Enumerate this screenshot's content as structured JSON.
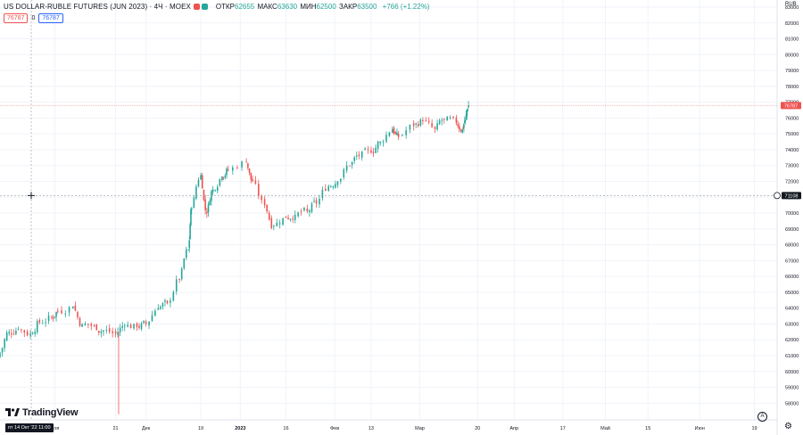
{
  "header": {
    "symbol_title": "US DOLLAR-RUBLE FUTURES (JUN 2023) · 4Ч · MOEX",
    "ohlc": [
      {
        "label": "ОТКР",
        "value": "62655"
      },
      {
        "label": "МАКС",
        "value": "63630"
      },
      {
        "label": "МИН",
        "value": "62500"
      },
      {
        "label": "ЗАКР",
        "value": "63500"
      }
    ],
    "change": "+766 (+1.22%)",
    "input_sell": "76787",
    "input_zero": "0",
    "input_buy": "76787"
  },
  "price_axis": {
    "currency": "RUB",
    "ticks": [
      "83000",
      "82000",
      "81000",
      "80000",
      "79000",
      "78000",
      "77000",
      "76000",
      "75000",
      "74000",
      "73000",
      "72000",
      "71000",
      "70000",
      "69000",
      "68000",
      "67000",
      "66000",
      "65000",
      "64000",
      "63000",
      "62000",
      "61000",
      "60000",
      "59000",
      "58000"
    ],
    "last_price_label": "76787",
    "crosshair_price_label": "71108"
  },
  "time_axis": {
    "ticks": [
      "Ноя",
      "21",
      "Дек",
      "19",
      "2023",
      "16",
      "Фев",
      "13",
      "Мар",
      "20",
      "Апр",
      "17",
      "Май",
      "15",
      "Июн",
      "19"
    ],
    "crosshair_time_label": "пт 14 Окт '22 11:00"
  },
  "branding": {
    "logo_text": "TradingView"
  },
  "icons": {
    "settings": "gear-icon",
    "reset": "reset-scale-icon",
    "crosshair": "crosshair-icon"
  },
  "colors": {
    "up": "#26a69a",
    "down": "#ef5350",
    "grid": "#f0f3fa",
    "crosshair": "#9598a1"
  },
  "chart_data": {
    "type": "candlestick",
    "title": "US DOLLAR-RUBLE FUTURES (JUN 2023) · 4Ч · MOEX",
    "ylim": [
      57000,
      83500
    ],
    "y_scale": "linear",
    "grid": true,
    "last_price": 76787,
    "crosshair_price": 71108,
    "x_range": [
      "2022-10-14",
      "2023-06-25"
    ],
    "series": [
      {
        "values": [
          {
            "x": "2022-10-14",
            "close": 61200
          },
          {
            "x": "2022-10-17",
            "close": 62500
          },
          {
            "x": "2022-10-20",
            "close": 62700
          },
          {
            "x": "2022-10-24",
            "close": 62400
          },
          {
            "x": "2022-10-27",
            "close": 63100
          },
          {
            "x": "2022-10-31",
            "close": 63400
          },
          {
            "x": "2022-11-02",
            "close": 63800
          },
          {
            "x": "2022-11-07",
            "close": 64100
          },
          {
            "x": "2022-11-10",
            "close": 63000
          },
          {
            "x": "2022-11-14",
            "close": 62900
          },
          {
            "x": "2022-11-17",
            "close": 62600
          },
          {
            "x": "2022-11-21",
            "close": 62400
          },
          {
            "x": "2022-11-24",
            "close": 62900
          },
          {
            "x": "2022-11-28",
            "close": 62800
          },
          {
            "x": "2022-12-01",
            "close": 63000
          },
          {
            "x": "2022-12-05",
            "close": 64000
          },
          {
            "x": "2022-12-08",
            "close": 64300
          },
          {
            "x": "2022-12-12",
            "close": 65800
          },
          {
            "x": "2022-12-15",
            "close": 67700
          },
          {
            "x": "2022-12-16",
            "close": 70300
          },
          {
            "x": "2022-12-19",
            "close": 72400
          },
          {
            "x": "2022-12-21",
            "close": 70000
          },
          {
            "x": "2022-12-23",
            "close": 71500
          },
          {
            "x": "2022-12-26",
            "close": 72300
          },
          {
            "x": "2022-12-28",
            "close": 72700
          },
          {
            "x": "2023-01-03",
            "close": 73200
          },
          {
            "x": "2023-01-05",
            "close": 72000
          },
          {
            "x": "2023-01-09",
            "close": 70500
          },
          {
            "x": "2023-01-12",
            "close": 69200
          },
          {
            "x": "2023-01-16",
            "close": 69700
          },
          {
            "x": "2023-01-19",
            "close": 69900
          },
          {
            "x": "2023-01-23",
            "close": 70100
          },
          {
            "x": "2023-01-26",
            "close": 70600
          },
          {
            "x": "2023-01-30",
            "close": 71700
          },
          {
            "x": "2023-02-02",
            "close": 72000
          },
          {
            "x": "2023-02-06",
            "close": 73000
          },
          {
            "x": "2023-02-09",
            "close": 73600
          },
          {
            "x": "2023-02-13",
            "close": 73800
          },
          {
            "x": "2023-02-16",
            "close": 74500
          },
          {
            "x": "2023-02-20",
            "close": 75300
          },
          {
            "x": "2023-02-22",
            "close": 74800
          },
          {
            "x": "2023-02-27",
            "close": 75500
          },
          {
            "x": "2023-03-02",
            "close": 75800
          },
          {
            "x": "2023-03-06",
            "close": 75300
          },
          {
            "x": "2023-03-09",
            "close": 75900
          },
          {
            "x": "2023-03-13",
            "close": 75700
          },
          {
            "x": "2023-03-15",
            "close": 75300
          },
          {
            "x": "2023-03-16",
            "close": 75900
          },
          {
            "x": "2023-03-17",
            "close": 76787
          }
        ]
      }
    ]
  }
}
